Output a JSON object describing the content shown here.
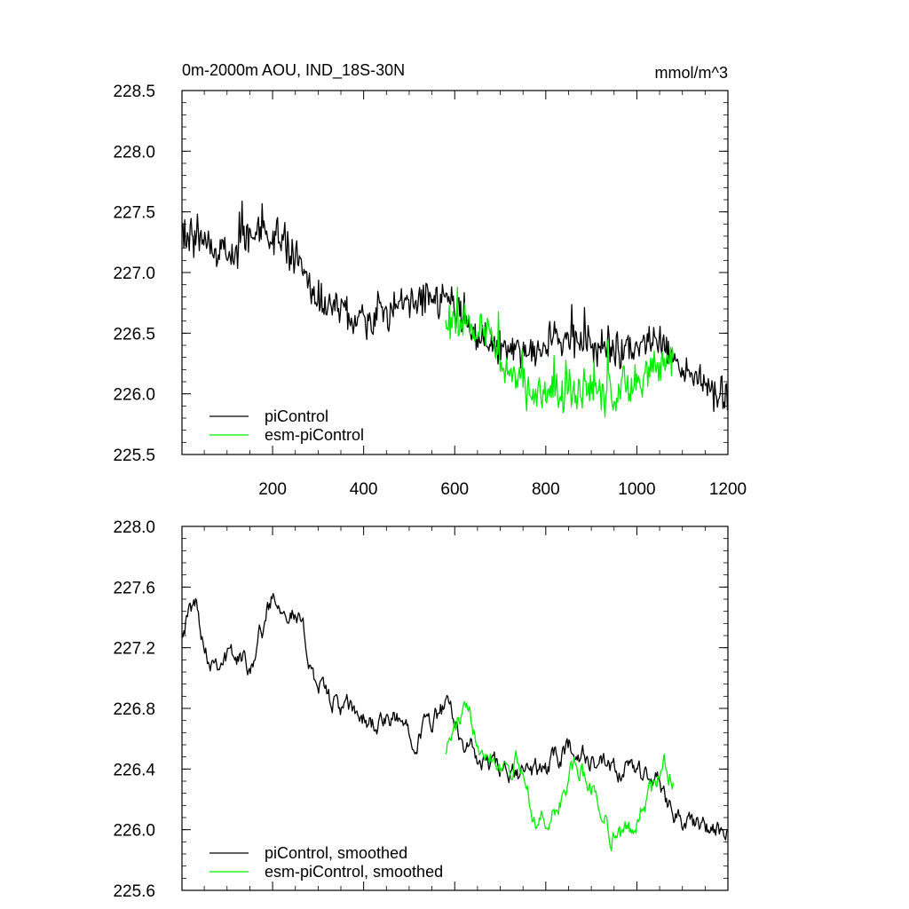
{
  "chart_data": [
    {
      "type": "line",
      "title": "0m-2000m AOU, IND_18S-30N",
      "units": "mmol/m^3",
      "xlim": [
        1,
        1200
      ],
      "ylim": [
        225.5,
        228.5
      ],
      "xticks": [
        200,
        400,
        600,
        800,
        1000,
        1200
      ],
      "yticks": [
        225.5,
        226.0,
        226.5,
        227.0,
        227.5,
        228.0,
        228.5
      ],
      "xtick_labels": [
        "200",
        "400",
        "600",
        "800",
        "1000",
        "1200"
      ],
      "ytick_labels": [
        "225.5",
        "226.0",
        "226.5",
        "227.0",
        "227.5",
        "228.0",
        "228.5"
      ],
      "legend_position": "bottom-left",
      "series": [
        {
          "name": "piControl",
          "color": "#000000",
          "x_range": [
            1,
            1200
          ],
          "trend_x": [
            1,
            100,
            170,
            250,
            300,
            400,
            500,
            580,
            650,
            750,
            850,
            950,
            1050,
            1150,
            1200
          ],
          "trend_y": [
            227.35,
            227.15,
            227.35,
            227.15,
            226.75,
            226.6,
            226.75,
            226.8,
            226.45,
            226.35,
            226.45,
            226.35,
            226.4,
            226.05,
            225.95
          ],
          "noise_amplitude": 0.22
        },
        {
          "name": "esm-piControl",
          "color": "#00ee00",
          "x_range": [
            580,
            1080
          ],
          "trend_x": [
            580,
            650,
            720,
            780,
            850,
            920,
            1000,
            1080
          ],
          "trend_y": [
            226.6,
            226.55,
            226.2,
            226.0,
            226.05,
            226.0,
            226.1,
            226.3
          ],
          "noise_amplitude": 0.25
        }
      ]
    },
    {
      "type": "line",
      "xlim": [
        1,
        1200
      ],
      "ylim": [
        225.6,
        228.0
      ],
      "xticks": [
        200,
        400,
        600,
        800,
        1000,
        1200
      ],
      "yticks": [
        225.6,
        226.0,
        226.4,
        226.8,
        227.2,
        227.6,
        228.0
      ],
      "ytick_labels": [
        "225.6",
        "226.0",
        "226.4",
        "226.8",
        "227.2",
        "227.6",
        "228.0"
      ],
      "legend_position": "bottom-left",
      "series": [
        {
          "name": "piControl, smoothed",
          "color": "#000000",
          "x_range": [
            1,
            1200
          ],
          "trend_x": [
            1,
            30,
            60,
            100,
            150,
            180,
            200,
            230,
            260,
            300,
            350,
            420,
            480,
            520,
            580,
            650,
            720,
            800,
            850,
            900,
            950,
            1000,
            1050,
            1100,
            1150,
            1200
          ],
          "trend_y": [
            227.35,
            227.5,
            227.15,
            227.15,
            227.1,
            227.35,
            227.55,
            227.5,
            227.35,
            226.95,
            226.8,
            226.7,
            226.7,
            226.65,
            226.8,
            226.45,
            226.35,
            226.4,
            226.55,
            226.45,
            226.35,
            226.4,
            226.3,
            226.05,
            226.0,
            225.95
          ],
          "noise_amplitude": 0.1
        },
        {
          "name": "esm-piControl, smoothed",
          "color": "#00ee00",
          "x_range": [
            580,
            1080
          ],
          "trend_x": [
            580,
            620,
            660,
            700,
            740,
            780,
            820,
            860,
            900,
            940,
            980,
            1020,
            1060,
            1080
          ],
          "trend_y": [
            226.55,
            226.75,
            226.6,
            226.45,
            226.45,
            226.05,
            226.1,
            226.4,
            226.3,
            226.0,
            225.95,
            226.2,
            226.4,
            226.35
          ],
          "noise_amplitude": 0.1
        }
      ]
    }
  ]
}
